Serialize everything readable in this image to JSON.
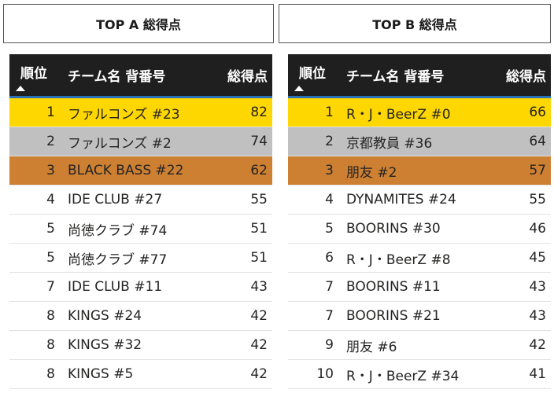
{
  "colors": {
    "header_bg": "#1f1f1f",
    "header_accent": "#2a72b8",
    "gold": "#ffd700",
    "silver": "#c0c0c0",
    "bronze": "#cd7f32"
  },
  "icons": {
    "sort": "sort-ascending-icon"
  },
  "panel_a": {
    "title": "TOP A 総得点",
    "headers": {
      "rank": "順位",
      "team": "チーム名 背番号",
      "score": "総得点"
    },
    "rows": [
      {
        "rank": "1",
        "team": "ファルコンズ #23",
        "score": "82"
      },
      {
        "rank": "2",
        "team": "ファルコンズ #2",
        "score": "74"
      },
      {
        "rank": "3",
        "team": "BLACK BASS #22",
        "score": "62"
      },
      {
        "rank": "4",
        "team": "IDE CLUB #27",
        "score": "55"
      },
      {
        "rank": "5",
        "team": "尚徳クラブ #74",
        "score": "51"
      },
      {
        "rank": "5",
        "team": "尚徳クラブ #77",
        "score": "51"
      },
      {
        "rank": "7",
        "team": "IDE CLUB #11",
        "score": "43"
      },
      {
        "rank": "8",
        "team": "KINGS #24",
        "score": "42"
      },
      {
        "rank": "8",
        "team": "KINGS #32",
        "score": "42"
      },
      {
        "rank": "8",
        "team": "KINGS #5",
        "score": "42"
      }
    ]
  },
  "panel_b": {
    "title": "TOP B 総得点",
    "headers": {
      "rank": "順位",
      "team": "チーム名 背番号",
      "score": "総得点"
    },
    "rows": [
      {
        "rank": "1",
        "team": "R・J・BeerZ #0",
        "score": "66"
      },
      {
        "rank": "2",
        "team": "京都教員 #36",
        "score": "64"
      },
      {
        "rank": "3",
        "team": "朋友 #2",
        "score": "57"
      },
      {
        "rank": "4",
        "team": "DYNAMITES #24",
        "score": "55"
      },
      {
        "rank": "5",
        "team": "BOORINS #30",
        "score": "46"
      },
      {
        "rank": "6",
        "team": "R・J・BeerZ #8",
        "score": "45"
      },
      {
        "rank": "7",
        "team": "BOORINS #11",
        "score": "43"
      },
      {
        "rank": "7",
        "team": "BOORINS #21",
        "score": "43"
      },
      {
        "rank": "9",
        "team": "朋友 #6",
        "score": "42"
      },
      {
        "rank": "10",
        "team": "R・J・BeerZ #34",
        "score": "41"
      }
    ]
  }
}
